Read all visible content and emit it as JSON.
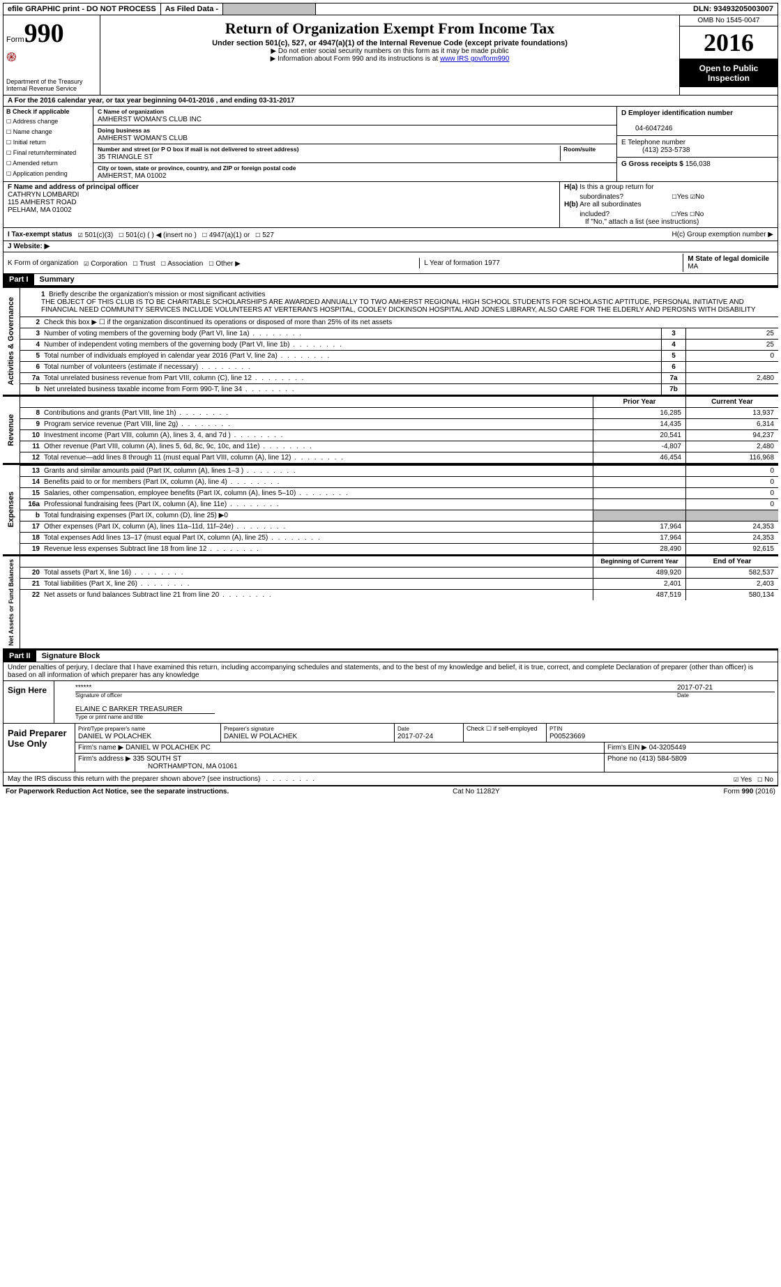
{
  "topbar": {
    "efile": "efile GRAPHIC print - DO NOT PROCESS",
    "asfiled": "As Filed Data -",
    "dln_label": "DLN:",
    "dln": "93493205003007"
  },
  "header": {
    "form_label": "Form",
    "form_num": "990",
    "dept": "Department of the Treasury",
    "irs": "Internal Revenue Service",
    "title": "Return of Organization Exempt From Income Tax",
    "subtitle": "Under section 501(c), 527, or 4947(a)(1) of the Internal Revenue Code (except private foundations)",
    "note1": "▶ Do not enter social security numbers on this form as it may be made public",
    "note2": "▶ Information about Form 990 and its instructions is at ",
    "note2_link": "www IRS gov/form990",
    "omb": "OMB No 1545-0047",
    "year": "2016",
    "open1": "Open to Public",
    "open2": "Inspection"
  },
  "lineA": "A   For the 2016 calendar year, or tax year beginning 04-01-2016   , and ending 03-31-2017",
  "B": {
    "title": "B Check if applicable",
    "opts": [
      "Address change",
      "Name change",
      "Initial return",
      "Final return/terminated",
      "Amended return",
      "Application pending"
    ]
  },
  "C": {
    "name_label": "C Name of organization",
    "name": "AMHERST WOMAN'S CLUB INC",
    "dba_label": "Doing business as",
    "dba": "AMHERST WOMAN'S CLUB",
    "street_label": "Number and street (or P O  box if mail is not delivered to street address)",
    "room_label": "Room/suite",
    "street": "35 TRIANGLE ST",
    "city_label": "City or town, state or province, country, and ZIP or foreign postal code",
    "city": "AMHERST, MA  01002"
  },
  "right": {
    "D_label": "D Employer identification number",
    "D": "04-6047246",
    "E_label": "E Telephone number",
    "E": "(413) 253-5738",
    "G_label": "G Gross receipts $",
    "G": "156,038"
  },
  "F": {
    "label": "F  Name and address of principal officer",
    "name": "CATHRYN LOMBARDI",
    "addr1": "115 AMHERST ROAD",
    "addr2": "PELHAM, MA  01002"
  },
  "H": {
    "a": "H(a)  Is this a group return for subordinates?",
    "a_yes": "Yes",
    "a_no": "No",
    "b": "H(b)  Are all subordinates included?",
    "b_yes": "Yes",
    "b_no": "No",
    "note": "If \"No,\" attach a list  (see instructions)",
    "c": "H(c)  Group exemption number ▶"
  },
  "I": {
    "label": "I   Tax-exempt status",
    "o1": "501(c)(3)",
    "o2": "501(c) (   ) ◀ (insert no )",
    "o3": "4947(a)(1) or",
    "o4": "527"
  },
  "J": {
    "label": "J   Website: ▶"
  },
  "K": {
    "label": "K Form of organization",
    "opts": [
      "Corporation",
      "Trust",
      "Association",
      "Other ▶"
    ]
  },
  "L": {
    "label": "L Year of formation  1977"
  },
  "M": {
    "label": "M State of legal domicile",
    "val": "MA"
  },
  "part1": {
    "hdr": "Part I",
    "title": "Summary"
  },
  "mission": {
    "n": "1",
    "label": "Briefly describe the organization's mission or most significant activities",
    "text": "THE OBJECT OF THIS CLUB IS TO BE CHARITABLE  SCHOLARSHIPS ARE AWARDED ANNUALLY TO TWO AMHERST REGIONAL HIGH SCHOOL STUDENTS FOR SCHOLASTIC APTITUDE, PERSONAL INITIATIVE AND FINANCIAL NEED COMMUNITY SERVICES INCLUDE VOLUNTEERS AT VERTERAN'S HOSPITAL, COOLEY DICKINSON HOSPITAL AND JONES LIBRARY, ALSO CARE FOR THE ELDERLY AND PEROSNS WITH DISABILITY"
  },
  "gov": {
    "side": "Activities & Governance",
    "l2": "Check this box ▶ ☐ if the organization discontinued its operations or disposed of more than 25% of its net assets",
    "rows": [
      {
        "n": "3",
        "desc": "Number of voting members of the governing body (Part VI, line 1a)",
        "box": "3",
        "val": "25"
      },
      {
        "n": "4",
        "desc": "Number of independent voting members of the governing body (Part VI, line 1b)",
        "box": "4",
        "val": "25"
      },
      {
        "n": "5",
        "desc": "Total number of individuals employed in calendar year 2016 (Part V, line 2a)",
        "box": "5",
        "val": "0"
      },
      {
        "n": "6",
        "desc": "Total number of volunteers (estimate if necessary)",
        "box": "6",
        "val": ""
      },
      {
        "n": "7a",
        "desc": "Total unrelated business revenue from Part VIII, column (C), line 12",
        "box": "7a",
        "val": "2,480"
      },
      {
        "n": "b",
        "desc": "Net unrelated business taxable income from Form 990-T, line 34",
        "box": "7b",
        "val": ""
      }
    ]
  },
  "rev": {
    "side": "Revenue",
    "hdr_prior": "Prior Year",
    "hdr_curr": "Current Year",
    "rows": [
      {
        "n": "8",
        "desc": "Contributions and grants (Part VIII, line 1h)",
        "p": "16,285",
        "c": "13,937"
      },
      {
        "n": "9",
        "desc": "Program service revenue (Part VIII, line 2g)",
        "p": "14,435",
        "c": "6,314"
      },
      {
        "n": "10",
        "desc": "Investment income (Part VIII, column (A), lines 3, 4, and 7d )",
        "p": "20,541",
        "c": "94,237"
      },
      {
        "n": "11",
        "desc": "Other revenue (Part VIII, column (A), lines 5, 6d, 8c, 9c, 10c, and 11e)",
        "p": "-4,807",
        "c": "2,480"
      },
      {
        "n": "12",
        "desc": "Total revenue—add lines 8 through 11 (must equal Part VIII, column (A), line 12)",
        "p": "46,454",
        "c": "116,968"
      }
    ]
  },
  "exp": {
    "side": "Expenses",
    "rows": [
      {
        "n": "13",
        "desc": "Grants and similar amounts paid (Part IX, column (A), lines 1–3 )",
        "p": "",
        "c": "0"
      },
      {
        "n": "14",
        "desc": "Benefits paid to or for members (Part IX, column (A), line 4)",
        "p": "",
        "c": "0"
      },
      {
        "n": "15",
        "desc": "Salaries, other compensation, employee benefits (Part IX, column (A), lines 5–10)",
        "p": "",
        "c": "0"
      },
      {
        "n": "16a",
        "desc": "Professional fundraising fees (Part IX, column (A), line 11e)",
        "p": "",
        "c": "0"
      },
      {
        "n": "b",
        "desc": "Total fundraising expenses (Part IX, column (D), line 25) ▶0",
        "p": "GRAY",
        "c": "GRAY"
      },
      {
        "n": "17",
        "desc": "Other expenses (Part IX, column (A), lines 11a–11d, 11f–24e)",
        "p": "17,964",
        "c": "24,353"
      },
      {
        "n": "18",
        "desc": "Total expenses  Add lines 13–17 (must equal Part IX, column (A), line 25)",
        "p": "17,964",
        "c": "24,353"
      },
      {
        "n": "19",
        "desc": "Revenue less expenses  Subtract line 18 from line 12",
        "p": "28,490",
        "c": "92,615"
      }
    ]
  },
  "net": {
    "side": "Net Assets or Fund Balances",
    "hdr_beg": "Beginning of Current Year",
    "hdr_end": "End of Year",
    "rows": [
      {
        "n": "20",
        "desc": "Total assets (Part X, line 16)",
        "p": "489,920",
        "c": "582,537"
      },
      {
        "n": "21",
        "desc": "Total liabilities (Part X, line 26)",
        "p": "2,401",
        "c": "2,403"
      },
      {
        "n": "22",
        "desc": "Net assets or fund balances  Subtract line 21 from line 20",
        "p": "487,519",
        "c": "580,134"
      }
    ]
  },
  "part2": {
    "hdr": "Part II",
    "title": "Signature Block"
  },
  "sig": {
    "decl": "Under penalties of perjury, I declare that I have examined this return, including accompanying schedules and statements, and to the best of my knowledge and belief, it is true, correct, and complete  Declaration of preparer (other than officer) is based on all information of which preparer has any knowledge",
    "sign_here": "Sign Here",
    "stars": "******",
    "sig_label": "Signature of officer",
    "date_label": "Date",
    "date": "2017-07-21",
    "name": "ELAINE C BARKER  TREASURER",
    "name_label": "Type or print name and title"
  },
  "prep": {
    "label": "Paid Preparer Use Only",
    "r1": {
      "l1": "Print/Type preparer's name",
      "v1": "DANIEL W POLACHEK",
      "l2": "Preparer's signature",
      "v2": "DANIEL W POLACHEK",
      "l3": "Date",
      "v3": "2017-07-24",
      "l4": "Check ☐ if self-employed",
      "l5": "PTIN",
      "v5": "P00523669"
    },
    "r2": {
      "l": "Firm's name    ▶",
      "v": "DANIEL W POLACHEK PC",
      "l2": "Firm's EIN ▶",
      "v2": "04-3205449"
    },
    "r3": {
      "l": "Firm's address ▶",
      "v": "335 SOUTH ST",
      "v2": "NORTHAMPTON, MA  01061",
      "l2": "Phone no  (413) 584-5809"
    }
  },
  "discuss": {
    "text": "May the IRS discuss this return with the preparer shown above? (see instructions)",
    "yes": "Yes",
    "no": "No"
  },
  "footer": {
    "l": "For Paperwork Reduction Act Notice, see the separate instructions.",
    "m": "Cat No  11282Y",
    "r": "Form 990 (2016)"
  }
}
